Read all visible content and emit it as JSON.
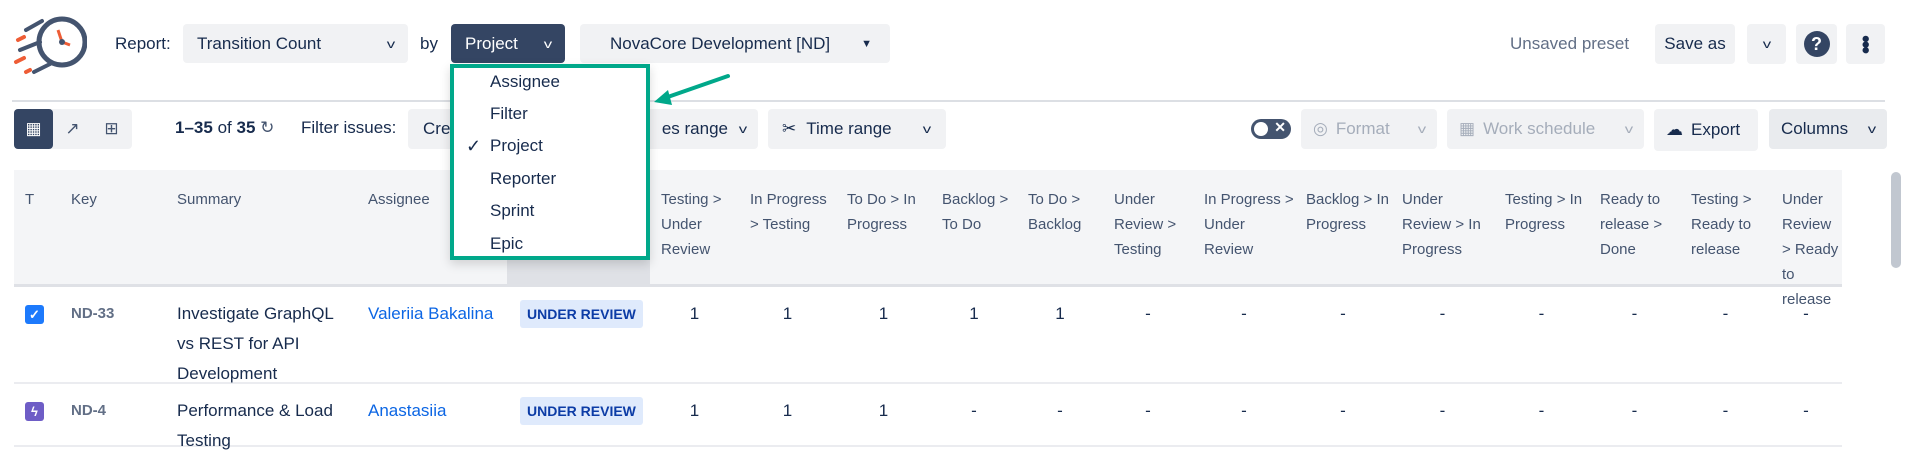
{
  "header": {
    "report_label": "Report:",
    "report_value": "Transition Count",
    "by_label": "by",
    "group_value": "Project",
    "project_value": "NovaCore Development [ND]",
    "preset_status": "Unsaved preset",
    "save_as": "Save as"
  },
  "toolbar": {
    "count_range": "1–35",
    "count_of": "of",
    "count_total": "35",
    "filter_label": "Filter issues:",
    "created_btn": "Cre",
    "statuses_range_btn": "es range",
    "time_range_btn": "Time range",
    "format_btn": "Format",
    "work_schedule_btn": "Work schedule",
    "export_btn": "Export",
    "columns_btn": "Columns"
  },
  "dropdown": {
    "items": [
      "Assignee",
      "Filter",
      "Project",
      "Reporter",
      "Sprint",
      "Epic"
    ],
    "selected": "Project"
  },
  "columns": [
    "T",
    "Key",
    "Summary",
    "Assignee",
    "",
    "Testing > Under Review",
    "In Progress > Testing",
    "To Do > In Progress",
    "Backlog > To Do",
    "To Do > Backlog",
    "Under Review > Testing",
    "In Progress > Under Review",
    "Backlog > In Progress",
    "Under Review > In Progress",
    "Testing > In Progress",
    "Ready to release > Done",
    "Testing > Ready to release",
    "Under Review > Ready to release"
  ],
  "rows": [
    {
      "type": "task",
      "key": "ND-33",
      "summary": "Investigate GraphQL vs REST for API Development",
      "assignee": "Valeriia Bakalina",
      "status": "UNDER REVIEW",
      "values": [
        "1",
        "1",
        "1",
        "1",
        "1",
        "-",
        "-",
        "-",
        "-",
        "-",
        "-",
        "-",
        "-"
      ]
    },
    {
      "type": "epic",
      "key": "ND-4",
      "summary": "Performance & Load Testing",
      "assignee": "Anastasiia",
      "status": "UNDER REVIEW",
      "values": [
        "1",
        "1",
        "1",
        "-",
        "-",
        "-",
        "-",
        "-",
        "-",
        "-",
        "-",
        "-",
        "-"
      ]
    }
  ],
  "colors": {
    "accent_dark": "#344563",
    "highlight": "#00a88a",
    "link": "#0c66e4",
    "badge_bg": "#dfeafc",
    "task_icon": "#1d7afc",
    "epic_icon": "#6e5dc6"
  }
}
